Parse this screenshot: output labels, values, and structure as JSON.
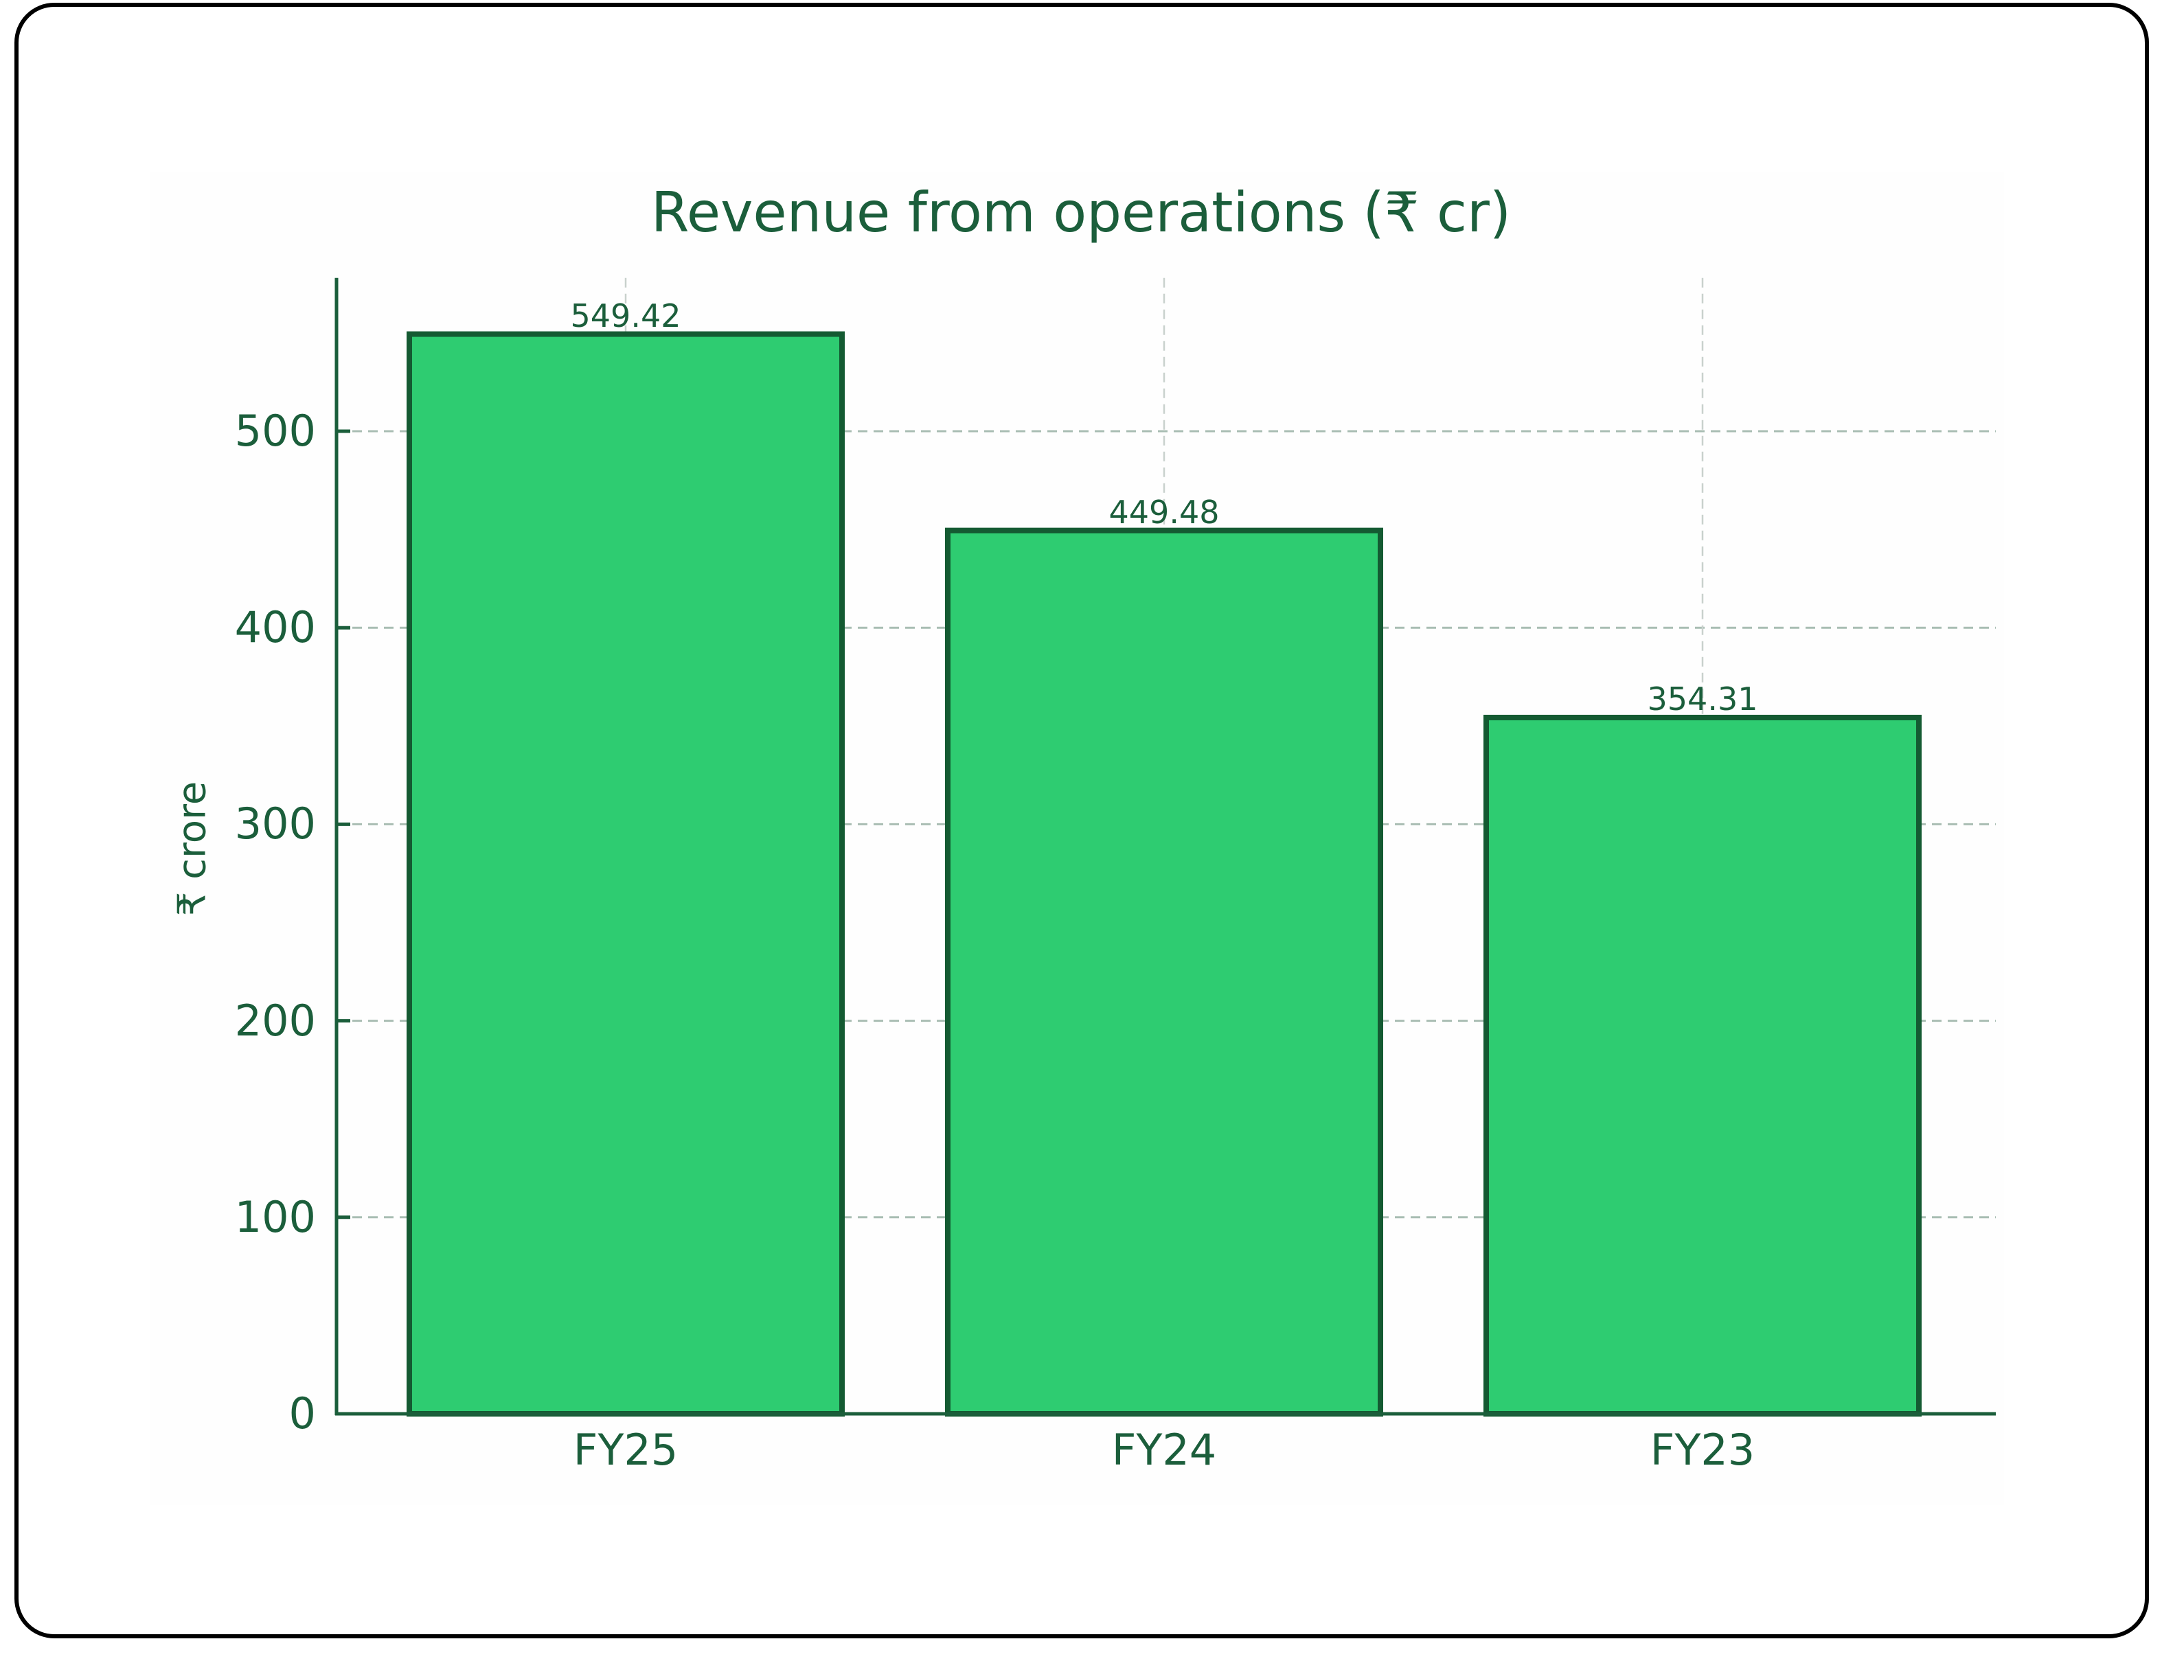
{
  "chart_data": {
    "type": "bar",
    "title": "Revenue from operations (₹ cr)",
    "xlabel": "",
    "ylabel": "₹ crore",
    "categories": [
      "FY25",
      "FY24",
      "FY23"
    ],
    "values": [
      549.42,
      449.48,
      354.31
    ],
    "value_labels": [
      "549.42",
      "449.48",
      "354.31"
    ],
    "ylim": [
      0,
      578
    ],
    "yticks": [
      0,
      100,
      200,
      300,
      400,
      500
    ],
    "ytick_labels": [
      "0",
      "100",
      "200",
      "300",
      "400",
      "500"
    ],
    "grid": true,
    "grid_style": "dashed",
    "legend": null,
    "colors": {
      "bar_fill": "#2ecc71",
      "bar_edge": "#145a32",
      "text": "#1b5e3b",
      "axis": "#1b5e3b",
      "grid": "#a9bdb3"
    }
  }
}
